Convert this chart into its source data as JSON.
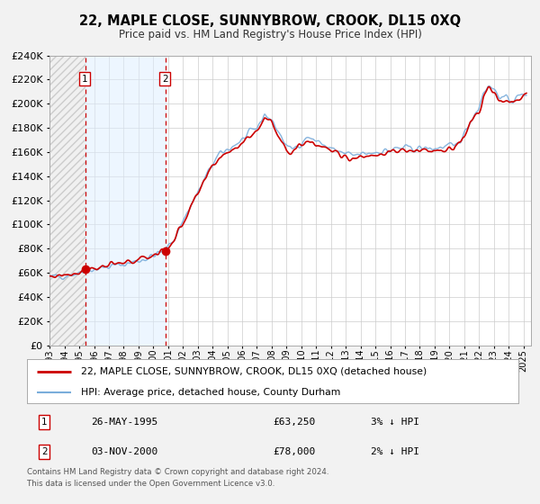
{
  "title": "22, MAPLE CLOSE, SUNNYBROW, CROOK, DL15 0XQ",
  "subtitle": "Price paid vs. HM Land Registry's House Price Index (HPI)",
  "bg_color": "#f2f2f2",
  "plot_bg_color": "#ffffff",
  "grid_color": "#cccccc",
  "sale1_price": 63250,
  "sale2_price": 78000,
  "sale1_label": "26-MAY-1995",
  "sale1_price_str": "£63,250",
  "sale1_pct": "3% ↓ HPI",
  "sale2_label": "03-NOV-2000",
  "sale2_price_str": "£78,000",
  "sale2_pct": "2% ↓ HPI",
  "legend1": "22, MAPLE CLOSE, SUNNYBROW, CROOK, DL15 0XQ (detached house)",
  "legend2": "HPI: Average price, detached house, County Durham",
  "line1_color": "#cc0000",
  "line2_color": "#7aaddb",
  "marker_color": "#cc0000",
  "vline_color": "#cc0000",
  "xmin": 1993.0,
  "xmax": 2025.5,
  "ymin": 0,
  "ymax": 240000,
  "sale1_t": 1995.4,
  "sale2_t": 2000.84,
  "footer": "Contains HM Land Registry data © Crown copyright and database right 2024.\nThis data is licensed under the Open Government Licence v3.0."
}
